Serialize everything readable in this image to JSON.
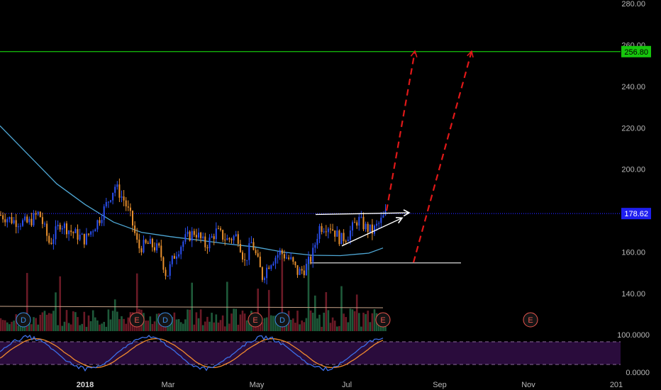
{
  "chart_data": {
    "type": "candlestick",
    "price_axis": {
      "ticks": [
        140,
        160,
        180,
        200,
        220,
        240,
        260,
        280
      ],
      "tick_labels": [
        "140.00",
        "160.00",
        "180.00",
        "200.00",
        "220.00",
        "240.00",
        "260.00",
        "280.00"
      ],
      "range": [
        128,
        282
      ]
    },
    "time_axis": {
      "labels": [
        {
          "text": "2018",
          "bold": true
        },
        {
          "text": "Mar",
          "bold": false
        },
        {
          "text": "May",
          "bold": false
        },
        {
          "text": "Jul",
          "bold": false
        },
        {
          "text": "Sep",
          "bold": false
        },
        {
          "text": "Nov",
          "bold": false
        },
        {
          "text": "201",
          "bold": false
        }
      ]
    },
    "horizontal_levels": [
      {
        "value": 256.8,
        "label": "256.80",
        "color": "#16c60c",
        "style": "solid"
      },
      {
        "value": 178.62,
        "label": "178.62",
        "color": "#1f1ff0",
        "style": "dotted"
      }
    ],
    "support_line": {
      "value": 154.8,
      "color": "#d9d9d9"
    },
    "moving_average": {
      "color": "#4fa8d6",
      "points": [
        [
          0,
          221
        ],
        [
          40,
          207
        ],
        [
          80,
          193
        ],
        [
          120,
          183
        ],
        [
          160,
          174.5
        ],
        [
          200,
          169.5
        ],
        [
          240,
          167.5
        ],
        [
          280,
          165.8
        ],
        [
          320,
          164
        ],
        [
          360,
          162.5
        ],
        [
          400,
          160
        ],
        [
          440,
          158.5
        ],
        [
          480,
          158.3
        ],
        [
          520,
          159.5
        ],
        [
          540,
          162
        ]
      ]
    },
    "candles": {
      "colors": {
        "up": "#2a4ff2",
        "down": "#e8902e"
      },
      "anchors": [
        [
          0,
          178
        ],
        [
          20,
          175
        ],
        [
          40,
          174
        ],
        [
          55,
          179
        ],
        [
          70,
          164
        ],
        [
          85,
          174
        ],
        [
          100,
          170
        ],
        [
          120,
          166
        ],
        [
          140,
          176
        ],
        [
          150,
          183
        ],
        [
          162,
          192
        ],
        [
          175,
          185
        ],
        [
          185,
          176
        ],
        [
          195,
          162
        ],
        [
          210,
          164
        ],
        [
          225,
          161
        ],
        [
          235,
          148
        ],
        [
          245,
          158
        ],
        [
          260,
          166
        ],
        [
          275,
          170
        ],
        [
          290,
          163
        ],
        [
          305,
          170
        ],
        [
          320,
          166
        ],
        [
          335,
          168
        ],
        [
          345,
          155
        ],
        [
          355,
          165
        ],
        [
          370,
          148
        ],
        [
          380,
          155
        ],
        [
          395,
          160
        ],
        [
          410,
          156
        ],
        [
          420,
          150
        ],
        [
          430,
          152
        ],
        [
          440,
          158
        ],
        [
          450,
          172
        ],
        [
          465,
          173
        ],
        [
          480,
          166
        ],
        [
          490,
          168
        ],
        [
          505,
          176
        ],
        [
          515,
          172
        ],
        [
          525,
          170
        ],
        [
          535,
          174
        ],
        [
          545,
          179
        ]
      ]
    },
    "volume": {
      "colors": {
        "up": "#1e5a3a",
        "down": "#6a1a26"
      },
      "baseline_color": "#c8a48a"
    },
    "event_markers": [
      {
        "letter": "D",
        "color": "#3a8ee6",
        "index": 0
      },
      {
        "letter": "E",
        "color": "#e8554e",
        "index": 9
      },
      {
        "letter": "D",
        "color": "#3a8ee6",
        "index": 11
      },
      {
        "letter": "E",
        "color": "#e8554e",
        "index": 17
      },
      {
        "letter": "D",
        "color": "#3a8ee6",
        "index": 19
      },
      {
        "letter": "E",
        "color": "#e8554e",
        "index": 26
      },
      {
        "letter": "E",
        "color": "#e8554e",
        "index": 36
      }
    ],
    "stochastic": {
      "axis_labels": [
        "100.0000",
        "0.0000"
      ],
      "band_color": "#2a0c3c",
      "k_color": "#3d6ee8",
      "d_color": "#f08a2e"
    },
    "annotations": [
      {
        "kind": "arrow",
        "color": "#ffffff",
        "style": "solid",
        "from": [
          445,
          178.2
        ],
        "to": [
          577,
          179
        ]
      },
      {
        "kind": "arrow",
        "color": "#ffffff",
        "style": "solid",
        "from": [
          482,
          163
        ],
        "to": [
          567,
          176.5
        ]
      },
      {
        "kind": "arrow",
        "color": "#e01818",
        "style": "dashed",
        "from": [
          545,
          180
        ],
        "to": [
          585,
          257
        ]
      },
      {
        "kind": "arrow",
        "color": "#e01818",
        "style": "dashed",
        "from": [
          583,
          155
        ],
        "to": [
          665,
          257
        ]
      }
    ]
  }
}
